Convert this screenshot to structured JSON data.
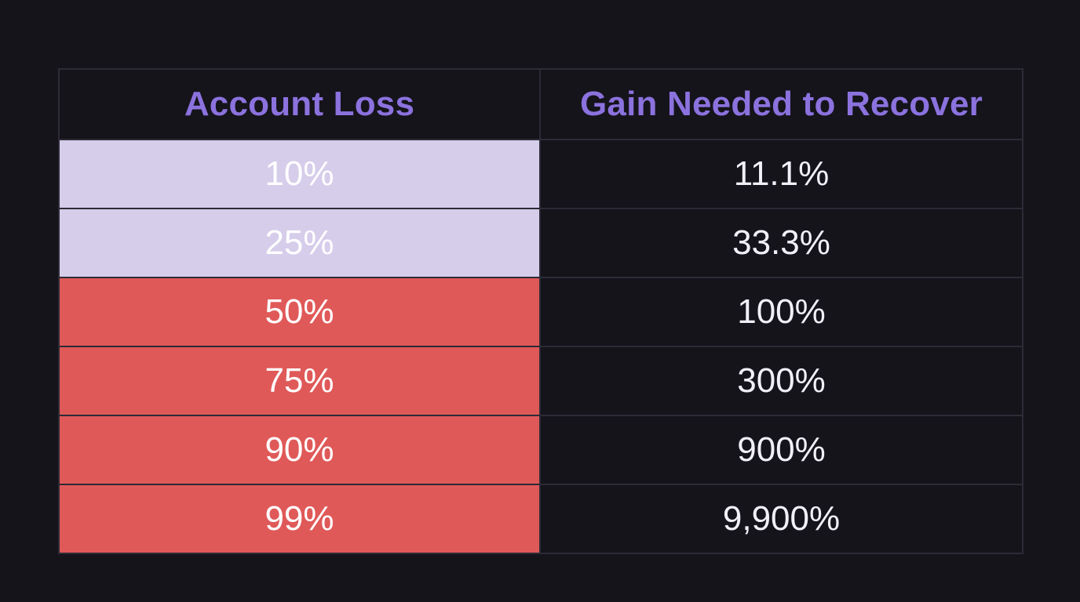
{
  "colors": {
    "background": "#15141b",
    "header_text": "#8b72de",
    "grid_line": "#2c2b36",
    "loss_light": "#d6cdeb",
    "loss_red": "#e05959",
    "cell_text": "#f2eff8"
  },
  "table": {
    "headers": {
      "loss": "Account Loss",
      "gain": "Gain Needed to Recover"
    },
    "rows": [
      {
        "loss": "10%",
        "gain": "11.1%",
        "tier": "light"
      },
      {
        "loss": "25%",
        "gain": "33.3%",
        "tier": "light"
      },
      {
        "loss": "50%",
        "gain": "100%",
        "tier": "red"
      },
      {
        "loss": "75%",
        "gain": "300%",
        "tier": "red"
      },
      {
        "loss": "90%",
        "gain": "900%",
        "tier": "red"
      },
      {
        "loss": "99%",
        "gain": "9,900%",
        "tier": "red"
      }
    ]
  }
}
